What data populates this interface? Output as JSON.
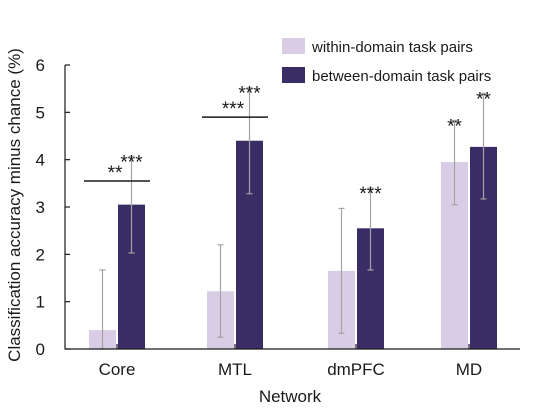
{
  "colors": {
    "within": "#d9cde5",
    "between": "#3a2d66",
    "errorbar": "#a3a3a3",
    "axis": "#1a1a1a",
    "bracket": "#1a1a1a"
  },
  "chart_data": {
    "type": "bar",
    "title": "",
    "xlabel": "Network",
    "ylabel": "Classification accuracy minus chance (%)",
    "ylim": [
      0,
      6
    ],
    "yticks": [
      "0",
      "1",
      "2",
      "3",
      "4",
      "5",
      "6"
    ],
    "grid": false,
    "legend_position": "top-right",
    "categories": [
      "Core",
      "MTL",
      "dmPFC",
      "MD"
    ],
    "series": [
      {
        "name": "within-domain task pairs",
        "color": "#d9cde5",
        "values": [
          0.4,
          1.22,
          1.65,
          3.95
        ],
        "err_low": [
          0.0,
          0.25,
          0.33,
          3.05
        ],
        "err_high": [
          1.67,
          2.2,
          2.97,
          4.83
        ],
        "significance": [
          "",
          "",
          "",
          "**"
        ]
      },
      {
        "name": "between-domain task pairs",
        "color": "#3a2d66",
        "values": [
          3.05,
          4.4,
          2.55,
          4.27
        ],
        "err_low": [
          2.03,
          3.28,
          1.67,
          3.17
        ],
        "err_high": [
          4.07,
          5.52,
          3.4,
          5.4
        ],
        "significance": [
          "***",
          "***",
          "***",
          "**"
        ]
      }
    ],
    "comparisons": [
      {
        "category": "Core",
        "y": 3.55,
        "label": "**"
      },
      {
        "category": "MTL",
        "y": 4.9,
        "label": "***"
      }
    ]
  }
}
